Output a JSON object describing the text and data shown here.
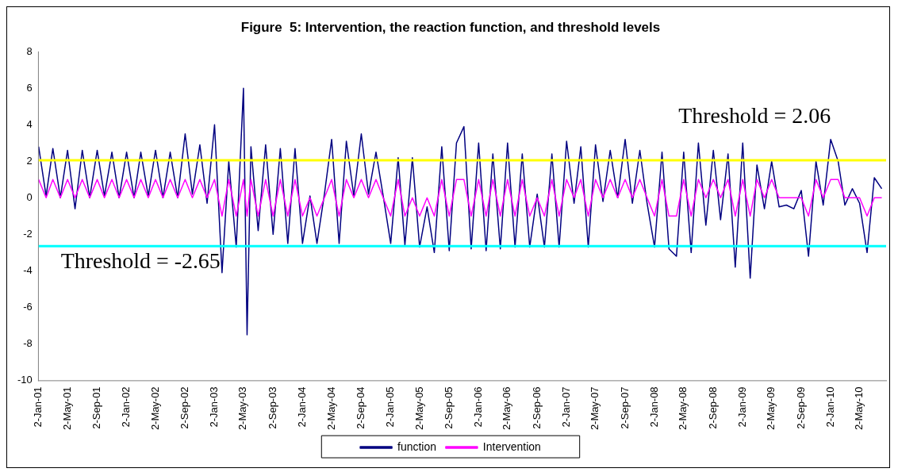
{
  "chart_data": {
    "type": "line",
    "title": "Figure  5: Intervention, the reaction function, and threshold levels",
    "x": [
      "2001-01-02",
      "2001-02-02",
      "2001-03-02",
      "2001-04-02",
      "2001-05-02",
      "2001-06-02",
      "2001-07-02",
      "2001-08-02",
      "2001-09-02",
      "2001-10-02",
      "2001-11-02",
      "2001-12-02",
      "2002-01-02",
      "2002-02-02",
      "2002-03-02",
      "2002-04-02",
      "2002-05-02",
      "2002-06-02",
      "2002-07-02",
      "2002-08-02",
      "2002-09-02",
      "2002-10-02",
      "2002-11-02",
      "2002-12-02",
      "2003-01-02",
      "2003-02-02",
      "2003-03-02",
      "2003-04-02",
      "2003-05-02",
      "2003-05-17",
      "2003-06-02",
      "2003-07-02",
      "2003-08-02",
      "2003-09-02",
      "2003-10-02",
      "2003-11-02",
      "2003-12-02",
      "2004-01-02",
      "2004-02-02",
      "2004-03-02",
      "2004-04-02",
      "2004-05-02",
      "2004-06-02",
      "2004-07-02",
      "2004-08-02",
      "2004-09-02",
      "2004-10-02",
      "2004-11-02",
      "2004-12-02",
      "2005-01-02",
      "2005-02-02",
      "2005-03-02",
      "2005-04-02",
      "2005-05-02",
      "2005-06-02",
      "2005-07-02",
      "2005-08-02",
      "2005-09-02",
      "2005-10-02",
      "2005-11-02",
      "2005-12-02",
      "2006-01-02",
      "2006-02-02",
      "2006-03-02",
      "2006-04-02",
      "2006-05-02",
      "2006-06-02",
      "2006-07-02",
      "2006-08-02",
      "2006-09-02",
      "2006-10-02",
      "2006-11-02",
      "2006-12-02",
      "2007-01-02",
      "2007-02-02",
      "2007-03-02",
      "2007-04-02",
      "2007-05-02",
      "2007-06-02",
      "2007-07-02",
      "2007-08-02",
      "2007-09-02",
      "2007-10-02",
      "2007-11-02",
      "2007-12-02",
      "2008-01-02",
      "2008-02-02",
      "2008-03-02",
      "2008-04-02",
      "2008-05-02",
      "2008-06-02",
      "2008-07-02",
      "2008-08-02",
      "2008-09-02",
      "2008-10-02",
      "2008-11-02",
      "2008-12-02",
      "2009-01-02",
      "2009-02-02",
      "2009-03-02",
      "2009-04-02",
      "2009-05-02",
      "2009-06-02",
      "2009-07-02",
      "2009-08-02",
      "2009-09-02",
      "2009-10-02",
      "2009-11-02",
      "2009-12-02",
      "2010-01-02",
      "2010-02-02",
      "2010-03-02",
      "2010-04-02",
      "2010-05-02",
      "2010-06-02",
      "2010-07-02",
      "2010-08-02"
    ],
    "series": [
      {
        "name": "function",
        "color": "#000080",
        "values": [
          2.8,
          0.1,
          2.7,
          0,
          2.6,
          -0.6,
          2.6,
          0,
          2.6,
          0.1,
          2.5,
          0,
          2.5,
          0,
          2.5,
          0.1,
          2.6,
          0,
          2.5,
          0,
          3.5,
          0.2,
          2.9,
          -0.3,
          4.0,
          -4.1,
          2.0,
          -2.7,
          6.0,
          -7.5,
          2.8,
          -1.8,
          2.9,
          -2.0,
          2.7,
          -2.5,
          2.7,
          -2.5,
          0.1,
          -2.5,
          0.2,
          3.2,
          -2.5,
          3.1,
          0.1,
          3.5,
          0.2,
          2.5,
          0.1,
          -2.5,
          2.2,
          -2.6,
          2.2,
          -2.7,
          -0.5,
          -3.0,
          2.8,
          -2.9,
          3.0,
          3.9,
          -2.8,
          3.0,
          -2.9,
          2.4,
          -2.8,
          3.0,
          -2.7,
          2.4,
          -2.7,
          0.2,
          -2.7,
          2.4,
          -2.7,
          3.1,
          -0.3,
          2.8,
          -2.7,
          2.9,
          -0.2,
          2.6,
          0.0,
          3.2,
          -0.3,
          2.6,
          -0.3,
          -2.7,
          2.5,
          -2.8,
          -3.2,
          2.5,
          -3.0,
          3.0,
          -1.5,
          2.6,
          -1.2,
          2.4,
          -3.8,
          3.0,
          -4.4,
          1.8,
          -0.6,
          2.0,
          -0.5,
          -0.4,
          -0.6,
          0.4,
          -3.2,
          2.0,
          -0.4,
          3.2,
          2.0,
          -0.4,
          0.5,
          -0.3,
          -3.0,
          1.1,
          0.5
        ]
      },
      {
        "name": "Intervention",
        "color": "#ff00ff",
        "values": [
          1,
          0,
          1,
          0,
          1,
          0,
          1,
          0,
          1,
          0,
          1,
          0,
          1,
          0,
          1,
          0,
          1,
          0,
          1,
          0,
          1,
          0,
          1,
          0,
          1,
          -1,
          1,
          -1,
          1,
          -1,
          1,
          -1,
          1,
          -1,
          1,
          -1,
          1,
          -1,
          0,
          -1,
          0,
          1,
          -1,
          1,
          0,
          1,
          0,
          1,
          0,
          -1,
          1,
          -1,
          0,
          -1,
          0,
          -1,
          1,
          -1,
          1,
          1,
          -1,
          1,
          -1,
          1,
          -1,
          1,
          -1,
          1,
          -1,
          0,
          -1,
          1,
          -1,
          1,
          0,
          1,
          -1,
          1,
          0,
          1,
          0,
          1,
          0,
          1,
          0,
          -1,
          1,
          -1,
          -1,
          1,
          -1,
          1,
          0,
          1,
          0,
          1,
          -1,
          1,
          -1,
          1,
          0,
          1,
          0,
          0,
          0,
          0,
          -1,
          1,
          0,
          1,
          1,
          0,
          0,
          0,
          -1,
          0,
          0
        ]
      }
    ],
    "xlim": [
      "2001-01-02",
      "2010-08-20"
    ],
    "xticks": [
      {
        "value": "2001-01-02",
        "label": "2-Jan-01"
      },
      {
        "value": "2001-05-02",
        "label": "2-May-01"
      },
      {
        "value": "2001-09-02",
        "label": "2-Sep-01"
      },
      {
        "value": "2002-01-02",
        "label": "2-Jan-02"
      },
      {
        "value": "2002-05-02",
        "label": "2-May-02"
      },
      {
        "value": "2002-09-02",
        "label": "2-Sep-02"
      },
      {
        "value": "2003-01-02",
        "label": "2-Jan-03"
      },
      {
        "value": "2003-05-02",
        "label": "2-May-03"
      },
      {
        "value": "2003-09-02",
        "label": "2-Sep-03"
      },
      {
        "value": "2004-01-02",
        "label": "2-Jan-04"
      },
      {
        "value": "2004-05-02",
        "label": "2-May-04"
      },
      {
        "value": "2004-09-02",
        "label": "2-Sep-04"
      },
      {
        "value": "2005-01-02",
        "label": "2-Jan-05"
      },
      {
        "value": "2005-05-02",
        "label": "2-May-05"
      },
      {
        "value": "2005-09-02",
        "label": "2-Sep-05"
      },
      {
        "value": "2006-01-02",
        "label": "2-Jan-06"
      },
      {
        "value": "2006-05-02",
        "label": "2-May-06"
      },
      {
        "value": "2006-09-02",
        "label": "2-Sep-06"
      },
      {
        "value": "2007-01-02",
        "label": "2-Jan-07"
      },
      {
        "value": "2007-05-02",
        "label": "2-May-07"
      },
      {
        "value": "2007-09-02",
        "label": "2-Sep-07"
      },
      {
        "value": "2008-01-02",
        "label": "2-Jan-08"
      },
      {
        "value": "2008-05-02",
        "label": "2-May-08"
      },
      {
        "value": "2008-09-02",
        "label": "2-Sep-08"
      },
      {
        "value": "2009-01-02",
        "label": "2-Jan-09"
      },
      {
        "value": "2009-05-02",
        "label": "2-May-09"
      },
      {
        "value": "2009-09-02",
        "label": "2-Sep-09"
      },
      {
        "value": "2010-01-02",
        "label": "2-Jan-10"
      },
      {
        "value": "2010-05-02",
        "label": "2-May-10"
      }
    ],
    "ylim": [
      -10,
      8
    ],
    "yticks": [
      -10,
      -8,
      -6,
      -4,
      -2,
      0,
      2,
      4,
      6,
      8
    ],
    "ref_lines": [
      {
        "axis": "y",
        "value": 2.06,
        "label": "Threshold = 2.06",
        "color": "#ffff00"
      },
      {
        "axis": "y",
        "value": -2.65,
        "label": "Threshold = -2.65",
        "color": "#00ffff"
      }
    ],
    "grid": false,
    "legend": "bottom"
  }
}
